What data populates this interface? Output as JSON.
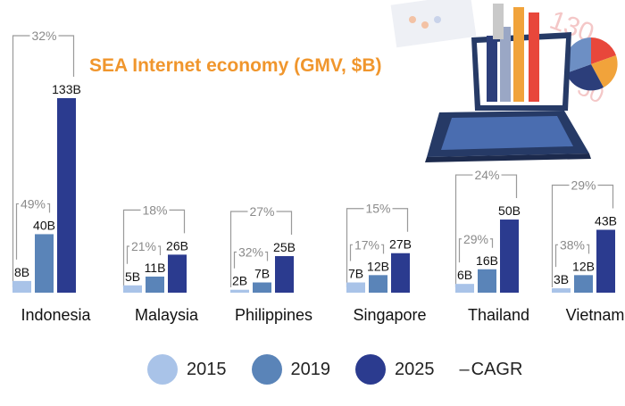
{
  "title": "SEA Internet economy (GMV, $B)",
  "chart_data": {
    "type": "bar",
    "categories": [
      "Indonesia",
      "Malaysia",
      "Philippines",
      "Singapore",
      "Thailand",
      "Vietnam"
    ],
    "series": [
      {
        "name": "2015",
        "color": "#a9c3e8",
        "values": [
          8,
          5,
          2,
          7,
          6,
          3
        ],
        "labels": [
          "8B",
          "5B",
          "2B",
          "7B",
          "6B",
          "3B"
        ]
      },
      {
        "name": "2019",
        "color": "#5a84b8",
        "values": [
          40,
          11,
          7,
          12,
          16,
          12
        ],
        "labels": [
          "40B",
          "11B",
          "7B",
          "12B",
          "16B",
          "12B"
        ]
      },
      {
        "name": "2025",
        "color": "#2b3b8f",
        "values": [
          133,
          26,
          25,
          27,
          50,
          43
        ],
        "labels": [
          "133B",
          "26B",
          "25B",
          "27B",
          "50B",
          "43B"
        ]
      }
    ],
    "cagr_2015_2019": [
      "49%",
      "21%",
      "32%",
      "17%",
      "29%",
      "38%"
    ],
    "cagr_2015_2025": [
      "32%",
      "18%",
      "27%",
      "15%",
      "24%",
      "29%"
    ],
    "cagr_label": "CAGR",
    "ylim": [
      0,
      133
    ]
  }
}
